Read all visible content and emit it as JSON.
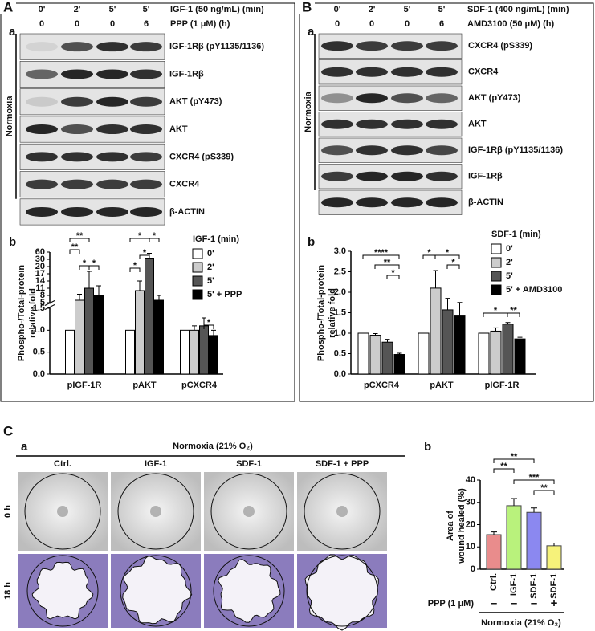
{
  "panels": {
    "A": {
      "label": "A",
      "sub_a": "a",
      "sub_b": "b",
      "conditions": [
        {
          "label": "IGF-1 (50 ng/mL) (min)",
          "values": [
            "0'",
            "2'",
            "5'",
            "5'"
          ]
        },
        {
          "label": "PPP (1 μM) (h)",
          "values": [
            0,
            0,
            0,
            6
          ]
        }
      ],
      "side_label": "Normoxia",
      "blots": [
        "IGF-1Rβ (pY1135/1136)",
        "IGF-1Rβ",
        "AKT (pY473)",
        "AKT",
        "CXCR4 (pS339)",
        "CXCR4",
        "β-ACTIN"
      ]
    },
    "B": {
      "label": "B",
      "sub_a": "a",
      "sub_b": "b",
      "conditions": [
        {
          "label": "SDF-1 (400 ng/mL) (min)",
          "values": [
            "0'",
            "2'",
            "5'",
            "5'"
          ]
        },
        {
          "label": "AMD3100 (50 μM) (h)",
          "values": [
            0,
            0,
            0,
            6
          ]
        }
      ],
      "side_label": "Normoxia",
      "blots": [
        "CXCR4 (pS339)",
        "CXCR4",
        "AKT (pY473)",
        "AKT",
        "IGF-1Rβ (pY1135/1136)",
        "IGF-1Rβ",
        "β-ACTIN"
      ]
    },
    "C": {
      "label": "C",
      "sub_a": "a",
      "sub_b": "b",
      "header": "Normoxia (21% O₂)",
      "columns": [
        "Ctrl.",
        "IGF-1",
        "SDF-1",
        "SDF-1 + PPP"
      ],
      "rows": [
        "0 h",
        "18 h"
      ]
    }
  },
  "chart_data": [
    {
      "type": "bar",
      "ylabel": [
        "Phospho-/Total-protein",
        "relative fold"
      ],
      "categories": [
        "pIGF-1R",
        "pAKT",
        "pCXCR4"
      ],
      "legend_title": "IGF-1 (min)",
      "series": [
        {
          "name": "0'",
          "color": "#ffffff",
          "values": [
            1.0,
            1.0,
            1.0
          ],
          "errors": [
            0,
            0,
            0
          ]
        },
        {
          "name": "2'",
          "color": "#cccccc",
          "values": [
            6,
            10,
            1.0
          ],
          "errors": [
            2.5,
            4,
            0.1
          ]
        },
        {
          "name": "5'",
          "color": "#555555",
          "values": [
            11,
            35,
            1.1
          ],
          "errors": [
            7,
            20,
            0.18
          ]
        },
        {
          "name": "5' + PPP",
          "color": "#000000",
          "values": [
            8,
            6,
            0.88
          ],
          "errors": [
            4,
            2,
            0.12
          ]
        }
      ],
      "ylim": [
        0,
        60
      ],
      "axis_break": [
        1.5,
        5
      ],
      "yticks": [
        {
          "value": 0,
          "label": "0.0"
        },
        0.5,
        {
          "value": 1,
          "label": "1.0"
        },
        1.5,
        5,
        8,
        11,
        14,
        17,
        20,
        30,
        60
      ],
      "annotations": [
        "**",
        "**",
        "*",
        "*",
        "*",
        "*",
        "*",
        "*",
        "*"
      ]
    },
    {
      "type": "bar",
      "ylabel": [
        "Phospho-/Total-protein",
        "relative fold"
      ],
      "categories": [
        "pCXCR4",
        "pAKT",
        "pIGF-1R"
      ],
      "legend_title": "SDF-1 (min)",
      "series": [
        {
          "name": "0'",
          "color": "#ffffff",
          "values": [
            1.0,
            1.0,
            1.0
          ],
          "errors": [
            0,
            0,
            0
          ]
        },
        {
          "name": "2'",
          "color": "#cccccc",
          "values": [
            0.95,
            2.1,
            1.05
          ],
          "errors": [
            0.04,
            0.43,
            0.08
          ]
        },
        {
          "name": "5'",
          "color": "#555555",
          "values": [
            0.78,
            1.57,
            1.22
          ],
          "errors": [
            0.07,
            0.28,
            0.04
          ]
        },
        {
          "name": "5' + AMD3100",
          "color": "#000000",
          "values": [
            0.48,
            1.42,
            0.86
          ],
          "errors": [
            0.03,
            0.33,
            0.04
          ]
        }
      ],
      "ylim": [
        0,
        3
      ],
      "yticks": [
        {
          "value": 0,
          "label": "0.0"
        },
        0.5,
        {
          "value": 1,
          "label": "1.0"
        },
        1.5,
        {
          "value": 2,
          "label": "2.0"
        },
        2.5,
        {
          "value": 3,
          "label": "3.0"
        }
      ],
      "annotations": [
        "****",
        "**",
        "*",
        "*",
        "*",
        "*",
        "*",
        "**"
      ]
    },
    {
      "type": "bar",
      "ylabel": [
        "Area of",
        "wound healed (%)"
      ],
      "categories": [
        "Ctrl.",
        "IGF-1",
        "SDF-1",
        "SDF-1"
      ],
      "values": [
        15.5,
        28.5,
        25.5,
        10.5
      ],
      "errors": [
        1.2,
        3.2,
        2.0,
        1.2
      ],
      "colors": [
        "#e98c8c",
        "#b9f27c",
        "#8b88f0",
        "#f6f27a"
      ],
      "ylim": [
        0,
        40
      ],
      "yticks": [
        0,
        10,
        20,
        30,
        40
      ],
      "row": {
        "label": "PPP (1 μM)",
        "values": [
          "–",
          "–",
          "–",
          "+"
        ]
      },
      "footer": "Normoxia (21% O₂)",
      "annotations": [
        "**",
        "**",
        "***",
        "**"
      ]
    }
  ]
}
